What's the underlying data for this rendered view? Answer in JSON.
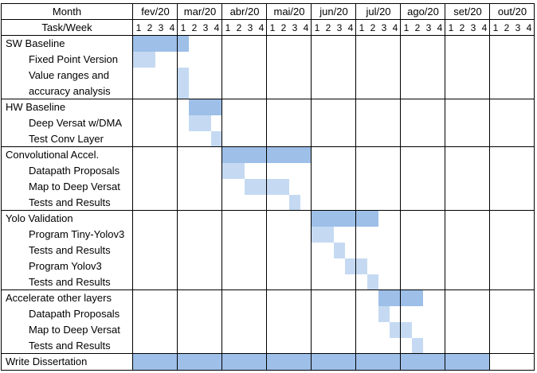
{
  "header": {
    "month_label": "Month",
    "task_label": "Task/Week"
  },
  "months": [
    "fev/20",
    "mar/20",
    "abr/20",
    "mai/20",
    "jun/20",
    "jul/20",
    "ago/20",
    "set/20",
    "out/20"
  ],
  "week_labels": [
    "1",
    "2",
    "3",
    "4"
  ],
  "colors": {
    "summary_bar": "#9dbfe8",
    "subtask_bar": "#c5daf2",
    "grid": "#000000"
  },
  "tasks": [
    {
      "label": "SW Baseline",
      "indent": false,
      "type": "summary",
      "start_week": 1,
      "end_week": 5
    },
    {
      "label": "Fixed Point Version",
      "indent": true,
      "type": "subtask",
      "start_week": 1,
      "end_week": 2
    },
    {
      "label": "Value ranges and",
      "indent": true,
      "type": "subtask",
      "start_week": 5,
      "end_week": 5
    },
    {
      "label": "accuracy analysis",
      "indent": true,
      "type": "subtask",
      "start_week": 5,
      "end_week": 5
    },
    {
      "label": "HW Baseline",
      "indent": false,
      "type": "summary",
      "start_week": 6,
      "end_week": 8
    },
    {
      "label": "Deep Versat w/DMA",
      "indent": true,
      "type": "subtask",
      "start_week": 6,
      "end_week": 7
    },
    {
      "label": "Test Conv Layer",
      "indent": true,
      "type": "subtask",
      "start_week": 8,
      "end_week": 8
    },
    {
      "label": "Convolutional Accel.",
      "indent": false,
      "type": "summary",
      "start_week": 9,
      "end_week": 16
    },
    {
      "label": "Datapath Proposals",
      "indent": true,
      "type": "subtask",
      "start_week": 9,
      "end_week": 10
    },
    {
      "label": "Map to Deep Versat",
      "indent": true,
      "type": "subtask",
      "start_week": 11,
      "end_week": 14
    },
    {
      "label": "Tests and Results",
      "indent": true,
      "type": "subtask",
      "start_week": 15,
      "end_week": 15
    },
    {
      "label": "Yolo Validation",
      "indent": false,
      "type": "summary",
      "start_week": 17,
      "end_week": 22
    },
    {
      "label": "Program Tiny-Yolov3",
      "indent": true,
      "type": "subtask",
      "start_week": 17,
      "end_week": 18
    },
    {
      "label": "Tests and Results",
      "indent": true,
      "type": "subtask",
      "start_week": 19,
      "end_week": 19
    },
    {
      "label": "Program Yolov3",
      "indent": true,
      "type": "subtask",
      "start_week": 20,
      "end_week": 21
    },
    {
      "label": "Tests and Results",
      "indent": true,
      "type": "subtask",
      "start_week": 22,
      "end_week": 22
    },
    {
      "label": "Accelerate other layers",
      "indent": false,
      "type": "summary",
      "start_week": 23,
      "end_week": 26
    },
    {
      "label": "Datapath Proposals",
      "indent": true,
      "type": "subtask",
      "start_week": 23,
      "end_week": 23
    },
    {
      "label": "Map to Deep Versat",
      "indent": true,
      "type": "subtask",
      "start_week": 24,
      "end_week": 25
    },
    {
      "label": "Tests and Results",
      "indent": true,
      "type": "subtask",
      "start_week": 26,
      "end_week": 26
    },
    {
      "label": "Write Dissertation",
      "indent": false,
      "type": "summary",
      "start_week": 1,
      "end_week": 32
    }
  ]
}
